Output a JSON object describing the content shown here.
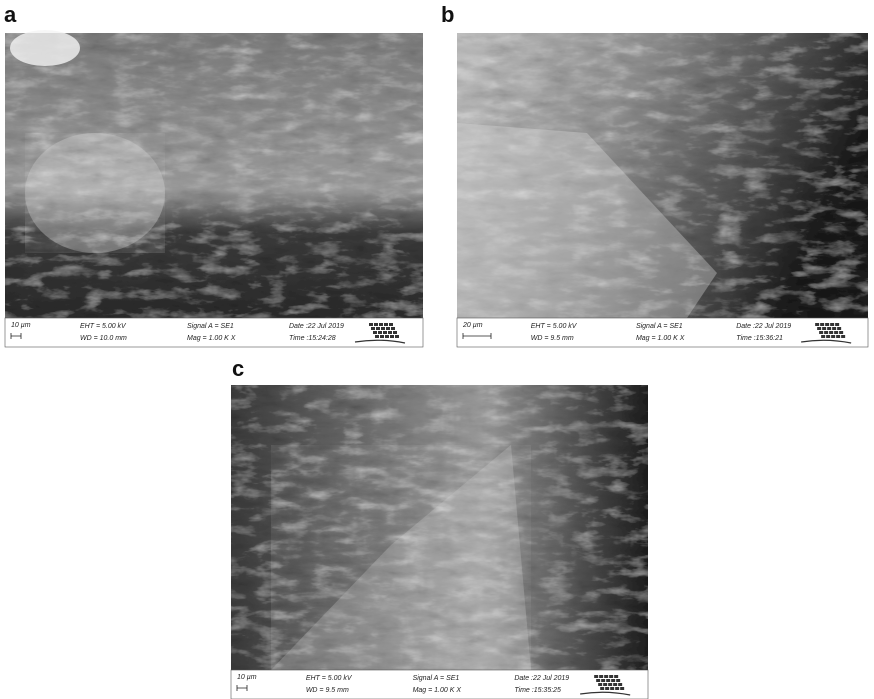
{
  "panels": [
    {
      "label": "a",
      "scale_bar": "10 µm",
      "eht": "EHT = 5.00 kV",
      "wd": "WD = 10.0 mm",
      "signal": "Signal A = SE1",
      "mag": "Mag = 1.00 K X",
      "date": "Date :22 Jul 2019",
      "time": "Time :15:24:28"
    },
    {
      "label": "b",
      "scale_bar": "20 µm",
      "eht": "EHT = 5.00 kV",
      "wd": "WD = 9.5 mm",
      "signal": "Signal A = SE1",
      "mag": "Mag = 1.00 K X",
      "date": "Date :22 Jul 2019",
      "time": "Time :15:36:21"
    },
    {
      "label": "c",
      "scale_bar": "10 µm",
      "eht": "EHT = 5.00 kV",
      "wd": "WD = 9.5 mm",
      "signal": "Signal A = SE1",
      "mag": "Mag = 1.00 K X",
      "date": "Date :22 Jul 2019",
      "time": "Time :15:35:25"
    }
  ]
}
